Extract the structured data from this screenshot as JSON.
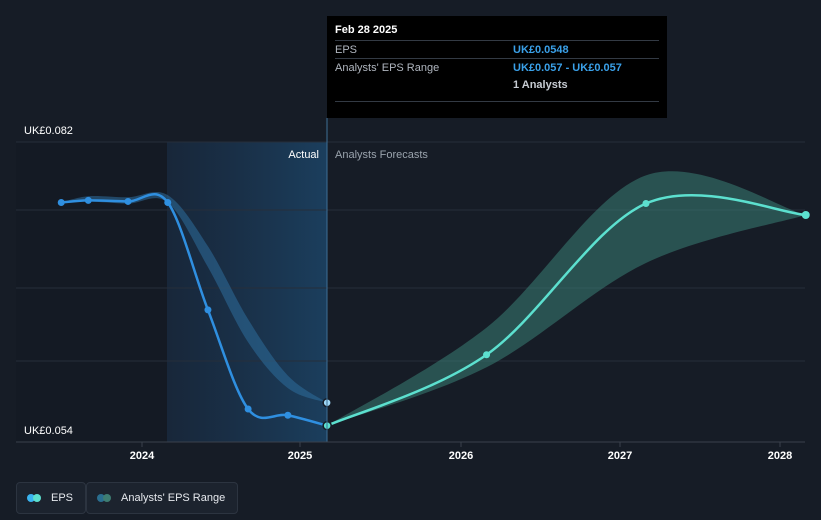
{
  "chart_data": {
    "type": "line",
    "y_axis": {
      "top_label": "UK£0.082",
      "bottom_label": "UK£0.054",
      "ylim": [
        0.054,
        0.082
      ]
    },
    "x_ticks": [
      "2024",
      "2025",
      "2026",
      "2027",
      "2028"
    ],
    "section_labels": {
      "actual": "Actual",
      "forecast": "Analysts Forecasts"
    },
    "series": [
      {
        "name": "EPS",
        "color": "#2f8fe0",
        "x": [
          "2023-06-30",
          "2023-08-31",
          "2023-11-30",
          "2024-02-29",
          "2024-05-31",
          "2024-08-31",
          "2024-11-30",
          "2025-02-28"
        ],
        "values": [
          0.0762,
          0.0764,
          0.0763,
          0.0762,
          0.0659,
          0.0564,
          0.0558,
          0.0548
        ]
      },
      {
        "name": "EPS Forecast",
        "color": "#5ce0cf",
        "x": [
          "2025-02-28",
          "2026-02-28",
          "2027-02-28",
          "2028-02-29"
        ],
        "values": [
          0.0548,
          0.0616,
          0.0761,
          0.075
        ]
      }
    ],
    "ranges": [
      {
        "name": "Analysts' EPS Range",
        "x": [
          "2023-06-30",
          "2023-08-31",
          "2023-11-30",
          "2024-02-29",
          "2024-05-31",
          "2024-08-31",
          "2024-11-30",
          "2025-02-28"
        ],
        "low": [
          0.0762,
          0.0763,
          0.0761,
          0.0762,
          0.07,
          0.0628,
          0.0584,
          0.057
        ],
        "high": [
          0.0762,
          0.0768,
          0.0767,
          0.0769,
          0.072,
          0.065,
          0.0596,
          0.057
        ]
      },
      {
        "name": "Analysts' EPS Range Forecast",
        "x": [
          "2025-02-28",
          "2026-02-28",
          "2027-02-28",
          "2028-02-29"
        ],
        "low": [
          0.0548,
          0.0604,
          0.0704,
          0.075
        ],
        "high": [
          0.0548,
          0.0642,
          0.0788,
          0.075
        ]
      }
    ],
    "extra_point": {
      "x": "2025-02-28",
      "value": 0.057
    }
  },
  "tooltip": {
    "date": "Feb 28 2025",
    "rows": [
      {
        "label": "EPS",
        "value": "UK£0.0548"
      },
      {
        "label": "Analysts' EPS Range",
        "value": "UK£0.057 - UK£0.057"
      }
    ],
    "analysts": "1 Analysts"
  },
  "legend": [
    {
      "label": "EPS",
      "color_a": "#3ab4f0",
      "color_b": "#5ce0cf"
    },
    {
      "label": "Analysts' EPS Range",
      "color_a": "#2a6e8f",
      "color_b": "#3e7d72"
    }
  ]
}
